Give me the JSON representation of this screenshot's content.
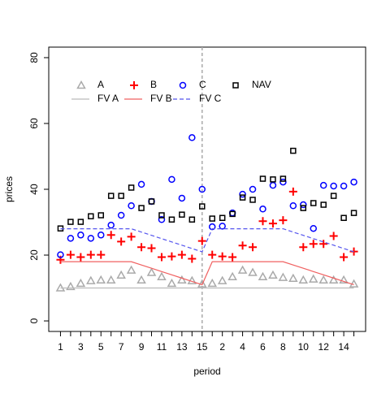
{
  "chart_data": {
    "type": "scatter-line",
    "xlabel": "period",
    "ylabel": "prices",
    "categories": [
      1,
      null,
      3,
      null,
      5,
      null,
      7,
      null,
      9,
      null,
      11,
      null,
      13,
      null,
      15,
      null,
      2,
      null,
      4,
      null,
      6,
      null,
      8,
      null,
      10,
      null,
      12,
      null,
      14,
      null
    ],
    "vline": 15,
    "ylim": [
      0,
      80
    ],
    "yticks": [
      0,
      20,
      40,
      60,
      80
    ],
    "series": [
      {
        "name": "A",
        "color": "#aaaaaa",
        "marker": "triangle",
        "values": [
          10,
          10.4,
          11.4,
          12.2,
          12.4,
          12.4,
          13.9,
          15.4,
          12.4,
          14.7,
          13.4,
          11.4,
          12.4,
          12.2,
          11.2,
          11.4,
          12.2,
          13.4,
          15.4,
          14.7,
          13.4,
          13.9,
          13.2,
          12.9,
          12.4,
          12.7,
          12.4,
          12.4,
          12.4,
          11.2
        ]
      },
      {
        "name": "B",
        "color": "#ff0000",
        "marker": "plus",
        "values": [
          18.6,
          20.1,
          19.4,
          20.1,
          20.1,
          26.1,
          24.1,
          25.6,
          22.4,
          22.1,
          19.4,
          19.6,
          20.1,
          18.9,
          24.3,
          20.1,
          19.6,
          19.4,
          22.9,
          22.4,
          30.3,
          29.6,
          30.6,
          39.3,
          22.4,
          23.4,
          23.4,
          25.8,
          19.4,
          21.1
        ]
      },
      {
        "name": "C",
        "color": "#0000ff",
        "marker": "circle",
        "values": [
          20.1,
          25.1,
          26.1,
          25.1,
          26.1,
          29.1,
          32.1,
          35,
          41.5,
          36.3,
          30.8,
          43,
          37.3,
          55.7,
          40,
          28.6,
          28.8,
          32.8,
          38.5,
          40,
          34,
          41.2,
          42.2,
          35,
          35.3,
          28.1,
          41.2,
          41,
          41,
          42.2
        ]
      },
      {
        "name": "NAV",
        "color": "#000000",
        "marker": "square",
        "values": [
          28.1,
          30.1,
          30.1,
          31.8,
          32.1,
          38,
          38,
          40.5,
          34.3,
          36.3,
          32.1,
          30.8,
          32.3,
          30.8,
          34.8,
          31.1,
          31.3,
          32.5,
          37.5,
          36.8,
          43.2,
          43,
          43.2,
          51.7,
          34.3,
          35.8,
          35.3,
          38,
          31.3,
          32.8
        ]
      },
      {
        "name": "FV A",
        "color": "#bbbbbb",
        "marker": "line",
        "values": [
          10,
          10,
          10,
          10,
          10,
          10,
          10,
          10,
          10,
          10,
          10,
          10,
          10,
          10,
          10,
          10,
          10,
          10,
          10,
          10,
          10,
          10,
          10,
          10,
          10,
          10,
          10,
          10,
          10,
          10
        ]
      },
      {
        "name": "FV B",
        "color": "#f06060",
        "marker": "line",
        "values": [
          18,
          18,
          18,
          18,
          18,
          18,
          18,
          18,
          17,
          16,
          15,
          14,
          13,
          12,
          11,
          18,
          18,
          18,
          18,
          18,
          18,
          18,
          18,
          17,
          16,
          15,
          14,
          13,
          12,
          11
        ]
      },
      {
        "name": "FV C",
        "color": "#5555ee",
        "marker": "dashed",
        "values": [
          28,
          28,
          28,
          28,
          28,
          28,
          28,
          28,
          27,
          26,
          25,
          24,
          23,
          22,
          21,
          28,
          28,
          28,
          28,
          28,
          28,
          28,
          28,
          27,
          26,
          25,
          24,
          23,
          22,
          21
        ]
      }
    ]
  }
}
